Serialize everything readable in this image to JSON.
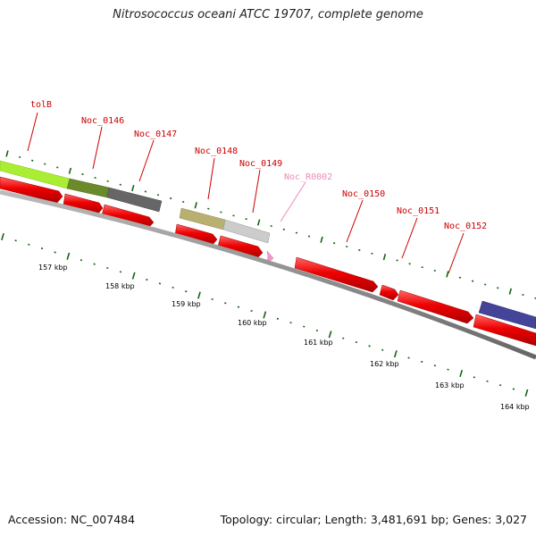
{
  "title": "Nitrosococcus oceani ATCC 19707, complete genome",
  "footer": {
    "accession": "Accession: NC_007484",
    "summary": "Topology: circular; Length: 3,481,691 bp; Genes: 3,027"
  },
  "colors": {
    "cds": "#ee1111",
    "rna": "#ee99cc",
    "label_default": "#cc0000",
    "label_rna": "#ee88bb",
    "backbone": "#999999",
    "tick": "#116611"
  },
  "kbp_labels": [
    "157 kbp",
    "158 kbp",
    "159 kbp",
    "160 kbp",
    "161 kbp",
    "162 kbp",
    "163 kbp",
    "164 kbp"
  ],
  "gene_labels": [
    "tolB",
    "Noc_0146",
    "Noc_0147",
    "Noc_0148",
    "Noc_0149",
    "Noc_R0002",
    "Noc_0150",
    "Noc_0151",
    "Noc_0152"
  ],
  "cog_band": [
    {
      "name": "tolB",
      "color": "#aaee33"
    },
    {
      "name": "Noc_0146",
      "color": "#6b8a2a"
    },
    {
      "name": "Noc_0147",
      "color": "#666666"
    },
    {
      "name": "Noc_0148",
      "color": "#b8b070"
    },
    {
      "name": "Noc_0149",
      "color": "#cccccc"
    },
    {
      "name": "Noc_0152",
      "color": "#444499"
    }
  ]
}
